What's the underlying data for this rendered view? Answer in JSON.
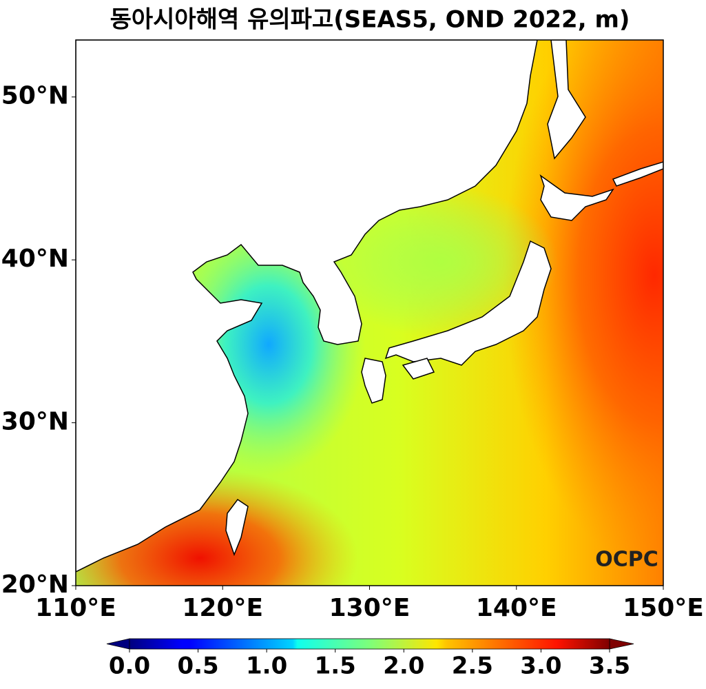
{
  "chart_data": {
    "type": "map",
    "title": "동아시아해역 유의파고(SEAS5, OND 2022, m)",
    "xlim": [
      110,
      150
    ],
    "ylim": [
      20,
      53.5
    ],
    "xticks": [
      {
        "value": 110,
        "label": "110°E"
      },
      {
        "value": 120,
        "label": "120°E"
      },
      {
        "value": 130,
        "label": "130°E"
      },
      {
        "value": 140,
        "label": "140°E"
      },
      {
        "value": 150,
        "label": "150°E"
      }
    ],
    "yticks": [
      {
        "value": 20,
        "label": "20°N"
      },
      {
        "value": 30,
        "label": "30°N"
      },
      {
        "value": 40,
        "label": "40°N"
      },
      {
        "value": 50,
        "label": "50°N"
      }
    ],
    "colormap": "jet",
    "clim": [
      0,
      3.5
    ],
    "cticks": [
      {
        "value": 0,
        "label": "0.0"
      },
      0.5,
      {
        "value": 1,
        "label": "1.0"
      },
      1.5,
      {
        "value": 2,
        "label": "2.0"
      },
      2.5,
      {
        "value": 3,
        "label": "3.0"
      },
      3.5
    ],
    "logo": "OCPC"
  }
}
